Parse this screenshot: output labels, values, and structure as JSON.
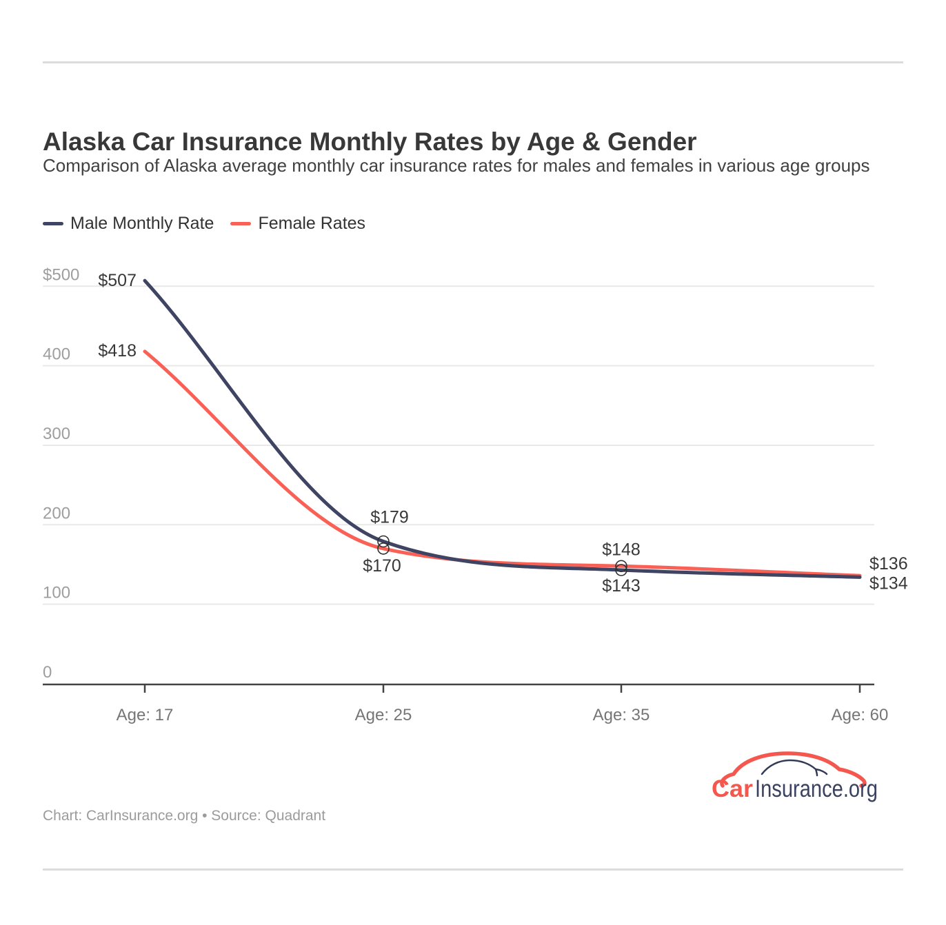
{
  "header": {
    "title": "Alaska Car Insurance Monthly Rates by Age & Gender",
    "subtitle": "Comparison of Alaska average monthly car insurance rates for males and females in various age groups"
  },
  "legend": {
    "items": [
      {
        "label": "Male Monthly Rate",
        "color": "#3e4462"
      },
      {
        "label": "Female Rates",
        "color": "#f96157"
      }
    ]
  },
  "chart_data": {
    "type": "line",
    "title": "Alaska Car Insurance Monthly Rates by Age & Gender",
    "categories": [
      "Age: 17",
      "Age: 25",
      "Age: 35",
      "Age: 60"
    ],
    "series": [
      {
        "name": "Male Monthly Rate",
        "color": "#3e4462",
        "values": [
          507,
          179,
          143,
          134
        ],
        "point_labels": [
          "$507",
          "$179",
          "$143",
          "$134"
        ]
      },
      {
        "name": "Female Rates",
        "color": "#f96157",
        "values": [
          418,
          170,
          148,
          136
        ],
        "point_labels": [
          "$418",
          "$170",
          "$148",
          "$136"
        ]
      }
    ],
    "y_axis": {
      "ticks": [
        0,
        100,
        200,
        300,
        400,
        500
      ],
      "tick_labels": [
        "0",
        "100",
        "200",
        "300",
        "400",
        "$500"
      ],
      "range": [
        0,
        500
      ]
    },
    "xlabel": "",
    "ylabel": "",
    "grid": true,
    "legend_position": "top-left",
    "marker_category_indices": [
      1,
      2
    ],
    "curve": "monotone"
  },
  "footer": {
    "credit": "Chart: CarInsurance.org • Source: Quadrant"
  },
  "logo": {
    "text_primary": "Car",
    "text_secondary": "Insurance.org"
  },
  "colors": {
    "male_line": "#3e4462",
    "female_line": "#f96157",
    "grid": "#e9e9e9",
    "axis": "#424242",
    "y_tick_label": "#9e9e9e",
    "x_tick_label": "#767676",
    "data_label": "#383838",
    "marker_stroke": "#2f2f2f",
    "divider": "#dcdcdc",
    "logo_red": "#f4574d",
    "logo_navy": "#3a4161"
  }
}
